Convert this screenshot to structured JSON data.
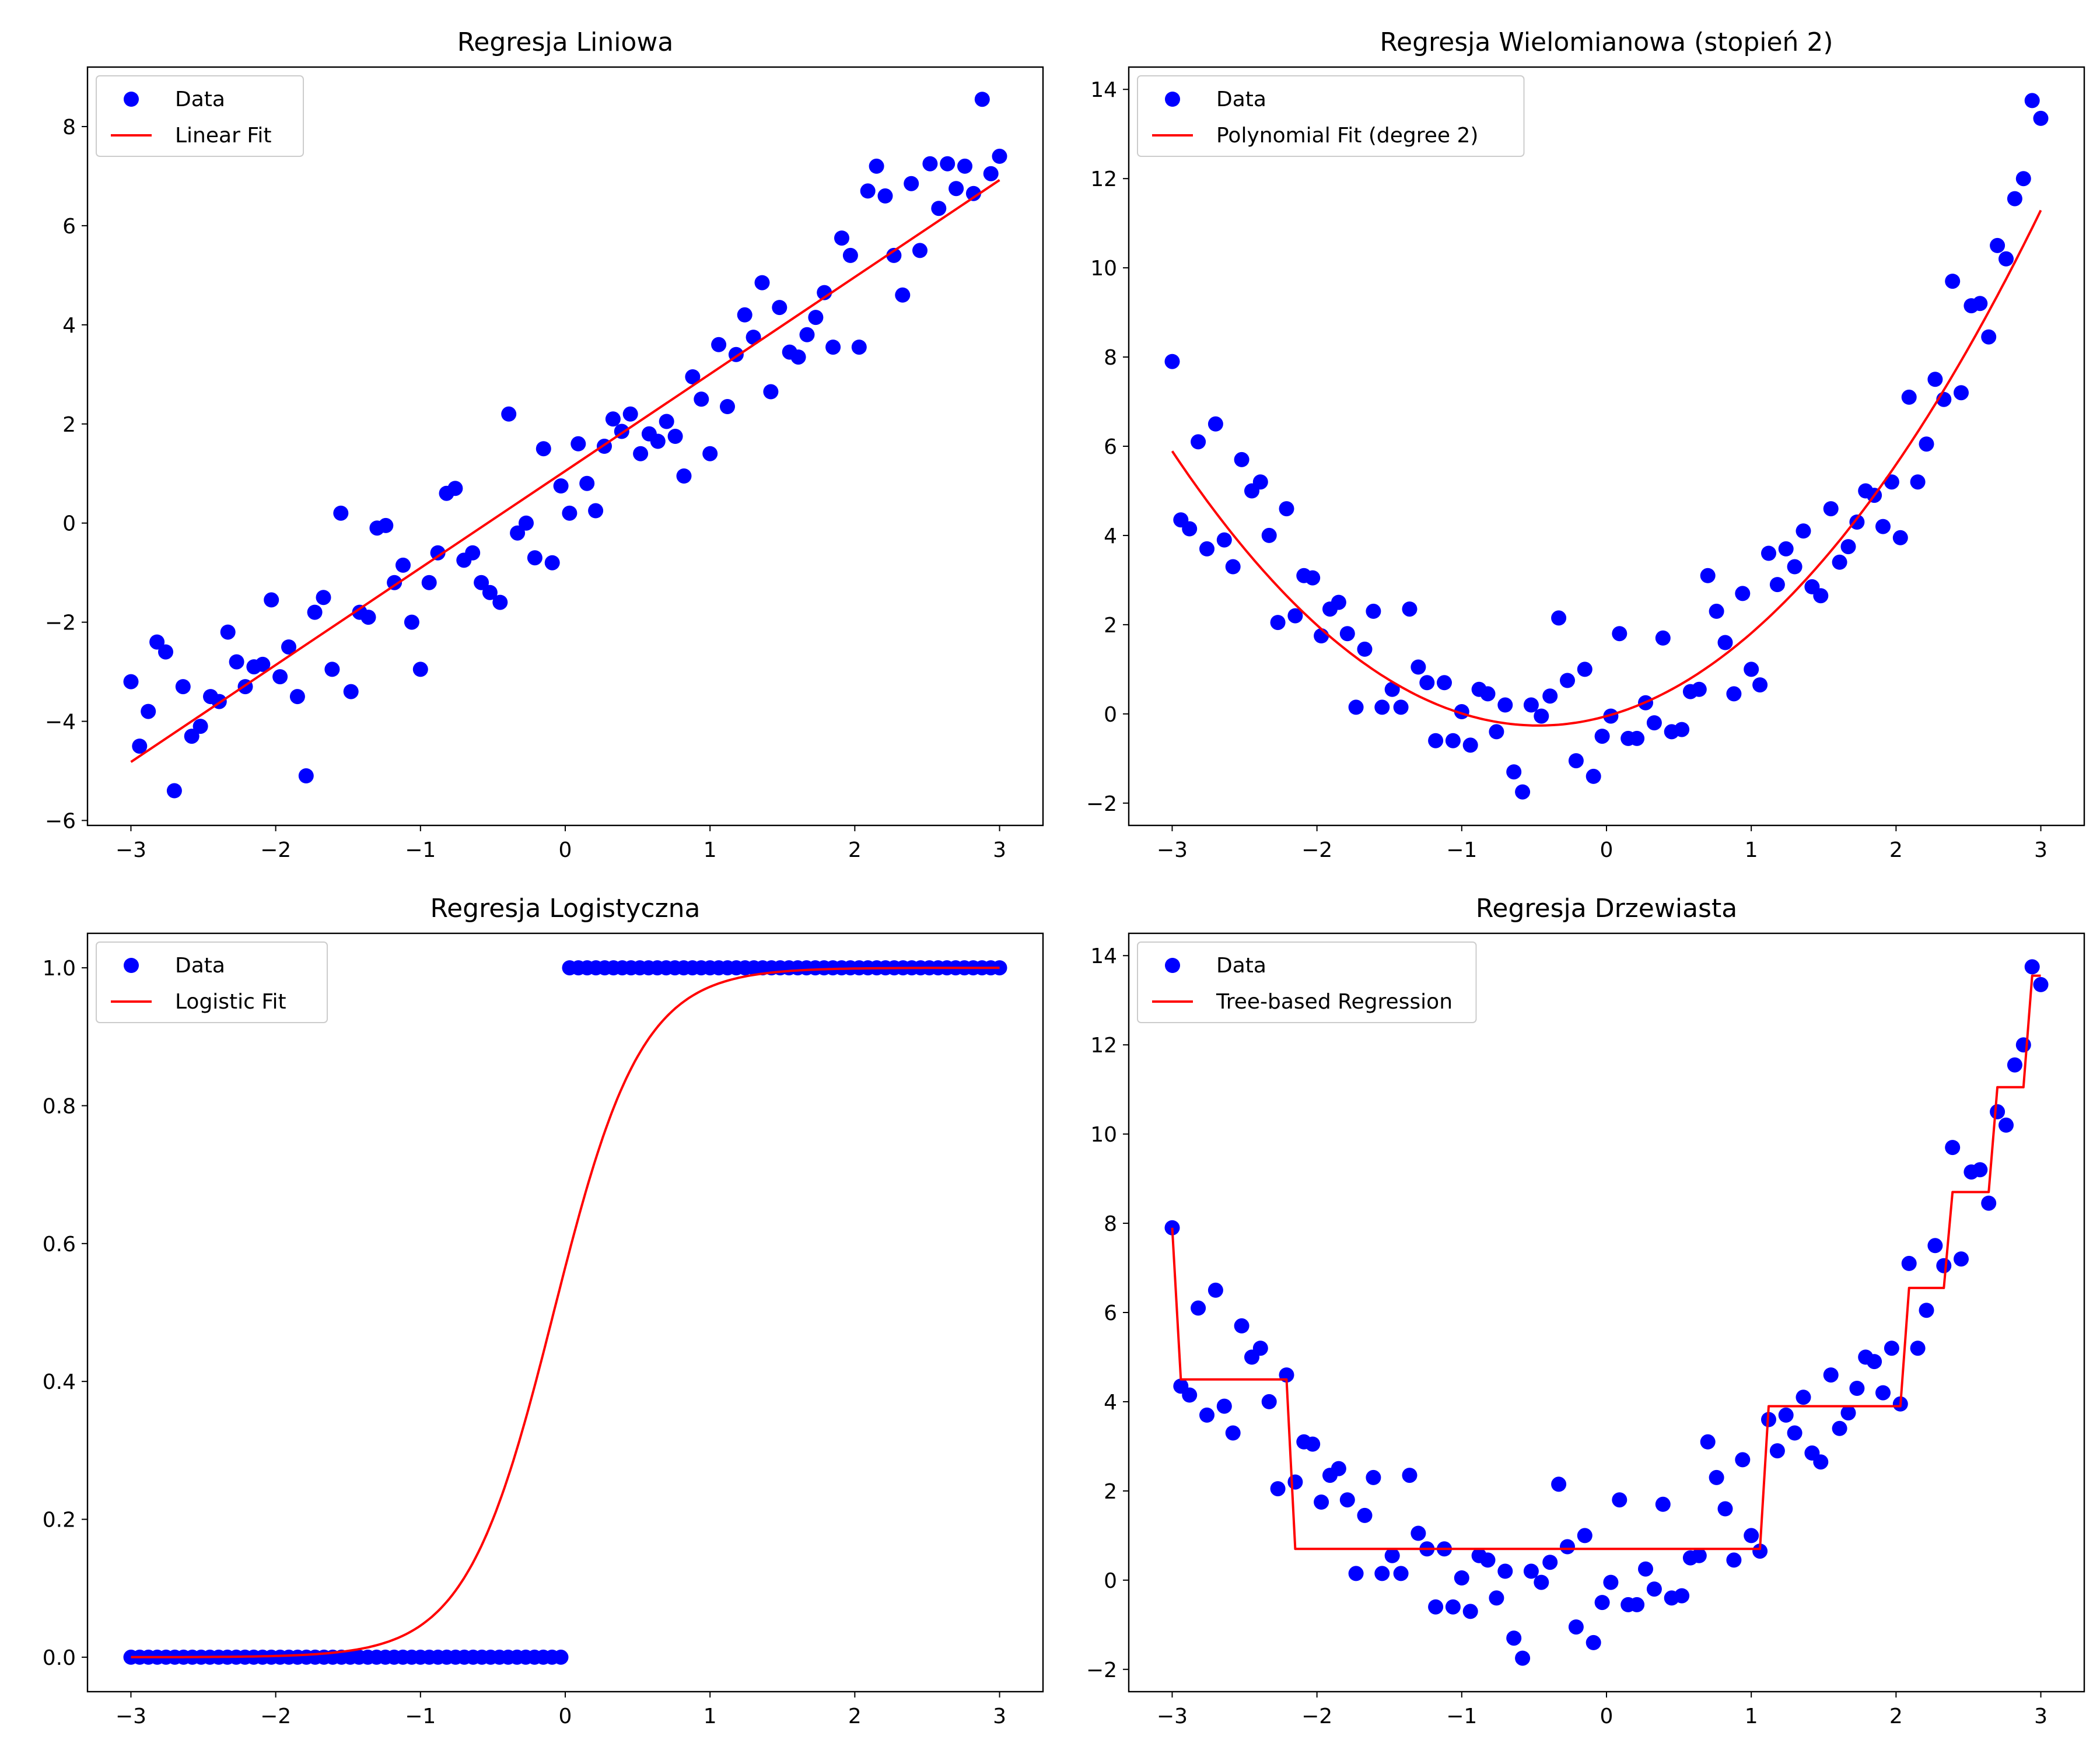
{
  "colors": {
    "data": "#0000ff",
    "fit": "#ff0000"
  },
  "chart_data": [
    {
      "title": "Regresja Liniowa",
      "type": "scatter",
      "xlim": [
        -3.3,
        3.3
      ],
      "ylim": [
        -6.1,
        9.2
      ],
      "xticks": [
        -3,
        -2,
        -1,
        0,
        1,
        2,
        3
      ],
      "yticks": [
        -6,
        -4,
        -2,
        0,
        2,
        4,
        6,
        8
      ],
      "legend": {
        "position": "top-left",
        "entries": [
          "Data",
          "Linear Fit"
        ]
      },
      "series": [
        {
          "name": "Data",
          "kind": "scatter",
          "x": [
            -3.0,
            -2.94,
            -2.88,
            -2.82,
            -2.76,
            -2.7,
            -2.64,
            -2.58,
            -2.52,
            -2.45,
            -2.39,
            -2.33,
            -2.27,
            -2.21,
            -2.15,
            -2.09,
            -2.03,
            -1.97,
            -1.91,
            -1.85,
            -1.79,
            -1.73,
            -1.67,
            -1.61,
            -1.55,
            -1.48,
            -1.42,
            -1.36,
            -1.3,
            -1.24,
            -1.18,
            -1.12,
            -1.06,
            -1.0,
            -0.94,
            -0.88,
            -0.82,
            -0.76,
            -0.7,
            -0.64,
            -0.58,
            -0.52,
            -0.45,
            -0.39,
            -0.33,
            -0.27,
            -0.21,
            -0.15,
            -0.09,
            -0.03,
            0.03,
            0.09,
            0.15,
            0.21,
            0.27,
            0.33,
            0.39,
            0.45,
            0.52,
            0.58,
            0.64,
            0.7,
            0.76,
            0.82,
            0.88,
            0.94,
            1.0,
            1.06,
            1.12,
            1.18,
            1.24,
            1.3,
            1.36,
            1.42,
            1.48,
            1.55,
            1.61,
            1.67,
            1.73,
            1.79,
            1.85,
            1.91,
            1.97,
            2.03,
            2.09,
            2.15,
            2.21,
            2.27,
            2.33,
            2.39,
            2.45,
            2.52,
            2.58,
            2.64,
            2.7,
            2.76,
            2.82,
            2.88,
            2.94,
            3.0
          ],
          "y": [
            -3.2,
            -4.5,
            -3.8,
            -2.4,
            -2.6,
            -5.4,
            -3.3,
            -4.3,
            -4.1,
            -3.5,
            -3.6,
            -2.2,
            -2.8,
            -3.3,
            -2.9,
            -2.85,
            -1.55,
            -3.1,
            -2.5,
            -3.5,
            -5.1,
            -1.8,
            -1.5,
            -2.95,
            0.2,
            -3.4,
            -1.8,
            -1.9,
            -0.1,
            -0.05,
            -1.2,
            -0.85,
            -2.0,
            -2.95,
            -1.2,
            -0.6,
            0.6,
            0.7,
            -0.75,
            -0.6,
            -1.2,
            -1.4,
            -1.6,
            2.2,
            -0.2,
            0.0,
            -0.7,
            1.5,
            -0.8,
            0.75,
            0.2,
            1.6,
            0.8,
            0.25,
            1.55,
            2.1,
            1.85,
            2.2,
            1.4,
            1.8,
            1.65,
            2.05,
            1.75,
            0.95,
            2.95,
            2.5,
            1.4,
            3.6,
            2.35,
            3.4,
            4.2,
            3.75,
            4.85,
            2.65,
            4.35,
            3.45,
            3.35,
            3.8,
            4.15,
            4.65,
            3.55,
            5.75,
            5.4,
            3.55,
            6.7,
            7.2,
            6.6,
            5.4,
            4.6,
            6.85,
            5.5,
            7.25,
            6.35,
            7.25,
            6.75,
            7.2,
            6.65,
            8.55,
            7.05,
            7.4
          ]
        },
        {
          "name": "Linear Fit",
          "kind": "line",
          "x": [
            -3,
            3
          ],
          "y": [
            -4.82,
            6.92
          ]
        }
      ]
    },
    {
      "title": "Regresja Wielomianowa (stopień 2)",
      "type": "scatter",
      "xlim": [
        -3.3,
        3.3
      ],
      "ylim": [
        -2.5,
        14.5
      ],
      "xticks": [
        -3,
        -2,
        -1,
        0,
        1,
        2,
        3
      ],
      "yticks": [
        -2,
        0,
        2,
        4,
        6,
        8,
        10,
        12,
        14
      ],
      "legend": {
        "position": "top-left",
        "entries": [
          "Data",
          "Polynomial Fit (degree 2)"
        ]
      },
      "series": [
        {
          "name": "Data",
          "kind": "scatter",
          "x": [
            -3.0,
            -2.94,
            -2.88,
            -2.82,
            -2.76,
            -2.7,
            -2.64,
            -2.58,
            -2.52,
            -2.45,
            -2.39,
            -2.33,
            -2.27,
            -2.21,
            -2.15,
            -2.09,
            -2.03,
            -1.97,
            -1.91,
            -1.85,
            -1.79,
            -1.73,
            -1.67,
            -1.61,
            -1.55,
            -1.48,
            -1.42,
            -1.36,
            -1.3,
            -1.24,
            -1.18,
            -1.12,
            -1.06,
            -1.0,
            -0.94,
            -0.88,
            -0.82,
            -0.76,
            -0.7,
            -0.64,
            -0.58,
            -0.52,
            -0.45,
            -0.39,
            -0.33,
            -0.27,
            -0.21,
            -0.15,
            -0.09,
            -0.03,
            0.03,
            0.09,
            0.15,
            0.21,
            0.27,
            0.33,
            0.39,
            0.45,
            0.52,
            0.58,
            0.64,
            0.7,
            0.76,
            0.82,
            0.88,
            0.94,
            1.0,
            1.06,
            1.12,
            1.18,
            1.24,
            1.3,
            1.36,
            1.42,
            1.48,
            1.55,
            1.61,
            1.67,
            1.73,
            1.79,
            1.85,
            1.91,
            1.97,
            2.03,
            2.09,
            2.15,
            2.21,
            2.27,
            2.33,
            2.39,
            2.45,
            2.52,
            2.58,
            2.64,
            2.7,
            2.76,
            2.82,
            2.88,
            2.94,
            3.0
          ],
          "y": [
            7.9,
            4.35,
            4.15,
            6.1,
            3.7,
            6.5,
            3.9,
            3.3,
            5.7,
            5.0,
            5.2,
            4.0,
            2.05,
            4.6,
            2.2,
            3.1,
            3.05,
            1.75,
            2.35,
            2.5,
            1.8,
            0.15,
            1.45,
            2.3,
            0.15,
            0.55,
            0.15,
            2.35,
            1.05,
            0.7,
            -0.6,
            0.7,
            -0.6,
            0.05,
            -0.7,
            0.55,
            0.45,
            -0.4,
            0.2,
            -1.3,
            -1.75,
            0.2,
            -0.05,
            0.4,
            2.15,
            0.75,
            -1.05,
            1.0,
            -1.4,
            -0.5,
            -0.05,
            1.8,
            -0.55,
            -0.55,
            0.25,
            -0.2,
            1.7,
            -0.4,
            -0.35,
            0.5,
            0.55,
            3.1,
            2.3,
            1.6,
            0.45,
            2.7,
            1.0,
            0.65,
            3.6,
            2.9,
            3.7,
            3.3,
            4.1,
            2.85,
            2.65,
            4.6,
            3.4,
            3.75,
            4.3,
            5.0,
            4.9,
            4.2,
            5.2,
            3.95,
            7.1,
            5.2,
            6.05,
            7.5,
            7.05,
            9.7,
            7.2,
            9.15,
            9.2,
            8.45,
            10.5,
            10.2,
            11.55,
            12.0,
            13.75,
            13.35
          ]
        },
        {
          "name": "Polynomial Fit (degree 2)",
          "kind": "quadratic",
          "coefficients": [
            0.96,
            0.9,
            -0.05
          ],
          "x_range": [
            -3,
            3
          ]
        }
      ]
    },
    {
      "title": "Regresja Logistyczna",
      "type": "scatter",
      "xlim": [
        -3.3,
        3.3
      ],
      "ylim": [
        -0.05,
        1.05
      ],
      "xticks": [
        -3,
        -2,
        -1,
        0,
        1,
        2,
        3
      ],
      "yticks": [
        0.0,
        0.2,
        0.4,
        0.6,
        0.8,
        1.0
      ],
      "ytick_labels": [
        "0.0",
        "0.2",
        "0.4",
        "0.6",
        "0.8",
        "1.0"
      ],
      "legend": {
        "position": "top-left",
        "entries": [
          "Data",
          "Logistic Fit"
        ]
      },
      "series": [
        {
          "name": "Data",
          "kind": "scatter",
          "x_range": [
            -3,
            3
          ],
          "n_points": 100,
          "threshold_x": 0,
          "y_below": 0,
          "y_above": 1
        },
        {
          "name": "Logistic Fit",
          "kind": "logistic",
          "slope": 3.3,
          "midpoint": -0.08,
          "x_range": [
            -3,
            3
          ]
        }
      ]
    },
    {
      "title": "Regresja Drzewiasta",
      "type": "scatter",
      "xlim": [
        -3.3,
        3.3
      ],
      "ylim": [
        -2.5,
        14.5
      ],
      "xticks": [
        -3,
        -2,
        -1,
        0,
        1,
        2,
        3
      ],
      "yticks": [
        -2,
        0,
        2,
        4,
        6,
        8,
        10,
        12,
        14
      ],
      "legend": {
        "position": "top-left",
        "entries": [
          "Data",
          "Tree-based Regression"
        ]
      },
      "series": [
        {
          "name": "Data",
          "kind": "scatter",
          "same_as_panel": 1
        },
        {
          "name": "Tree-based Regression",
          "kind": "line",
          "x": [
            -3.0,
            -2.94,
            -2.94,
            -2.21,
            -2.15,
            -2.15,
            1.06,
            1.12,
            1.12,
            2.03,
            2.09,
            2.09,
            2.33,
            2.39,
            2.39,
            2.64,
            2.7,
            2.7,
            2.88,
            2.94,
            2.94,
            3.0
          ],
          "y": [
            7.9,
            4.5,
            4.5,
            4.5,
            0.7,
            0.7,
            0.7,
            3.9,
            3.9,
            3.9,
            6.55,
            6.55,
            6.55,
            8.7,
            8.7,
            8.7,
            11.05,
            11.05,
            11.05,
            13.55,
            13.55,
            13.55
          ]
        }
      ]
    }
  ]
}
